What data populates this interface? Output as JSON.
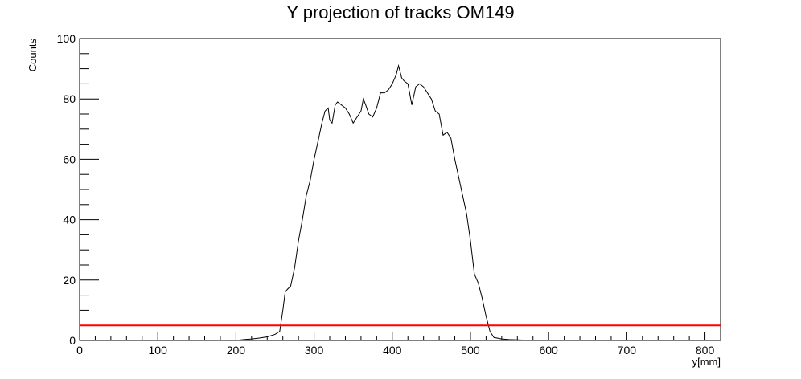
{
  "chart_data": {
    "type": "line",
    "title": "Y projection of tracks OM149",
    "xlabel": "y[mm]",
    "ylabel": "Counts",
    "xlim": [
      0,
      820
    ],
    "ylim": [
      0,
      100
    ],
    "x_ticks": [
      0,
      100,
      200,
      300,
      400,
      500,
      600,
      700,
      800
    ],
    "y_ticks": [
      0,
      20,
      40,
      60,
      80,
      100
    ],
    "grid": false,
    "legend": "none",
    "series": [
      {
        "color": "#000000",
        "points": [
          [
            200,
            0
          ],
          [
            210,
            0.3
          ],
          [
            220,
            0.5
          ],
          [
            230,
            0.8
          ],
          [
            240,
            1.2
          ],
          [
            250,
            2
          ],
          [
            256,
            3
          ],
          [
            260,
            10
          ],
          [
            263,
            16
          ],
          [
            266,
            17
          ],
          [
            270,
            18
          ],
          [
            275,
            24
          ],
          [
            280,
            33
          ],
          [
            285,
            40
          ],
          [
            290,
            48
          ],
          [
            295,
            53
          ],
          [
            300,
            60
          ],
          [
            305,
            66
          ],
          [
            310,
            72
          ],
          [
            314,
            76
          ],
          [
            318,
            77
          ],
          [
            320,
            73
          ],
          [
            323,
            72
          ],
          [
            327,
            78
          ],
          [
            330,
            79
          ],
          [
            335,
            78
          ],
          [
            340,
            77
          ],
          [
            345,
            75
          ],
          [
            350,
            72
          ],
          [
            355,
            74
          ],
          [
            360,
            76
          ],
          [
            363,
            80
          ],
          [
            366,
            78
          ],
          [
            370,
            75
          ],
          [
            375,
            74
          ],
          [
            380,
            77
          ],
          [
            385,
            82
          ],
          [
            390,
            82
          ],
          [
            395,
            83
          ],
          [
            400,
            85
          ],
          [
            405,
            88
          ],
          [
            408,
            91
          ],
          [
            412,
            87
          ],
          [
            415,
            86
          ],
          [
            420,
            85
          ],
          [
            425,
            78
          ],
          [
            430,
            84
          ],
          [
            435,
            85
          ],
          [
            440,
            84
          ],
          [
            445,
            82
          ],
          [
            450,
            80
          ],
          [
            455,
            76
          ],
          [
            460,
            75
          ],
          [
            465,
            68
          ],
          [
            470,
            69
          ],
          [
            475,
            67
          ],
          [
            480,
            60
          ],
          [
            485,
            54
          ],
          [
            490,
            48
          ],
          [
            495,
            42
          ],
          [
            500,
            33
          ],
          [
            505,
            22
          ],
          [
            510,
            19
          ],
          [
            515,
            14
          ],
          [
            520,
            8
          ],
          [
            525,
            3
          ],
          [
            530,
            1
          ],
          [
            540,
            0.5
          ],
          [
            550,
            0.3
          ],
          [
            560,
            0.2
          ],
          [
            570,
            0.1
          ],
          [
            580,
            0
          ]
        ]
      },
      {
        "color": "#ff0000",
        "points": [
          [
            0,
            5
          ],
          [
            820,
            5
          ]
        ]
      }
    ]
  }
}
